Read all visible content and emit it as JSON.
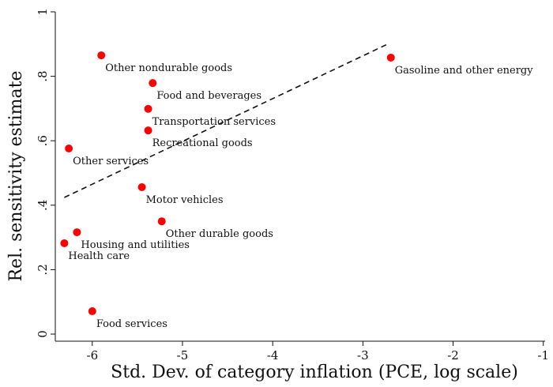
{
  "chart_data": {
    "type": "scatter",
    "xlabel": "Std. Dev. of category inflation (PCE, log scale)",
    "ylabel": "Rel. sensitivity estimate",
    "xlim": [
      -6.41,
      -0.98
    ],
    "ylim": [
      -0.022,
      1.0
    ],
    "xticks": [
      -6,
      -5,
      -4,
      -3,
      -2,
      -1
    ],
    "yticks": [
      0,
      {
        "value": 0.2,
        "label": ".2"
      },
      {
        "value": 0.4,
        "label": ".4"
      },
      {
        "value": 0.6,
        "label": ".6"
      },
      {
        "value": 0.8,
        "label": ".8"
      },
      1
    ],
    "color": "#ff0000",
    "points": [
      {
        "label": "Other nondurable goods",
        "x": -5.9,
        "y": 0.865
      },
      {
        "label": "Gasoline and other energy",
        "x": -2.69,
        "y": 0.858
      },
      {
        "label": "Food and beverages",
        "x": -5.33,
        "y": 0.779
      },
      {
        "label": "Transportation services",
        "x": -5.38,
        "y": 0.699
      },
      {
        "label": "Recreational goods",
        "x": -5.38,
        "y": 0.632
      },
      {
        "label": "Other services",
        "x": -6.26,
        "y": 0.576
      },
      {
        "label": "Motor vehicles",
        "x": -5.45,
        "y": 0.456
      },
      {
        "label": "Other durable goods",
        "x": -5.23,
        "y": 0.35
      },
      {
        "label": "Housing and utilities",
        "x": -6.17,
        "y": 0.316
      },
      {
        "label": "Health care",
        "x": -6.31,
        "y": 0.282
      },
      {
        "label": "Food services",
        "x": -6.0,
        "y": 0.071
      }
    ],
    "fit_line": {
      "x": [
        -6.31,
        -2.71
      ],
      "y": [
        0.424,
        0.902
      ]
    }
  }
}
